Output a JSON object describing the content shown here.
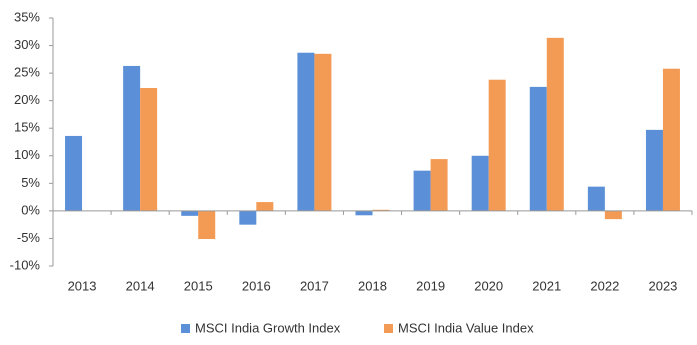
{
  "chart_data": {
    "type": "bar",
    "categories": [
      "2013",
      "2014",
      "2015",
      "2016",
      "2017",
      "2018",
      "2019",
      "2020",
      "2021",
      "2022",
      "2023"
    ],
    "series": [
      {
        "name": "MSCI India Growth Index",
        "color": "#5B8FD8",
        "values": [
          13.6,
          26.3,
          -0.9,
          -2.5,
          28.7,
          -0.8,
          7.3,
          10.0,
          22.5,
          4.4,
          14.7
        ]
      },
      {
        "name": "MSCI India Value Index",
        "color": "#F39B55",
        "values": [
          null,
          22.3,
          -5.1,
          1.6,
          28.5,
          0.2,
          9.4,
          23.8,
          31.4,
          -1.5,
          25.8
        ]
      }
    ],
    "ylim": [
      -10,
      35
    ],
    "yticks": [
      {
        "value": -10,
        "label": "-10%"
      },
      {
        "value": -5,
        "label": "-5%"
      },
      {
        "value": 0,
        "label": "0%"
      },
      {
        "value": 5,
        "label": "5%"
      },
      {
        "value": 10,
        "label": "10%"
      },
      {
        "value": 15,
        "label": "15%"
      },
      {
        "value": 20,
        "label": "20%"
      },
      {
        "value": 25,
        "label": "25%"
      },
      {
        "value": 30,
        "label": "30%"
      },
      {
        "value": 35,
        "label": "35%"
      }
    ],
    "grid": false,
    "legend": "bottom"
  }
}
